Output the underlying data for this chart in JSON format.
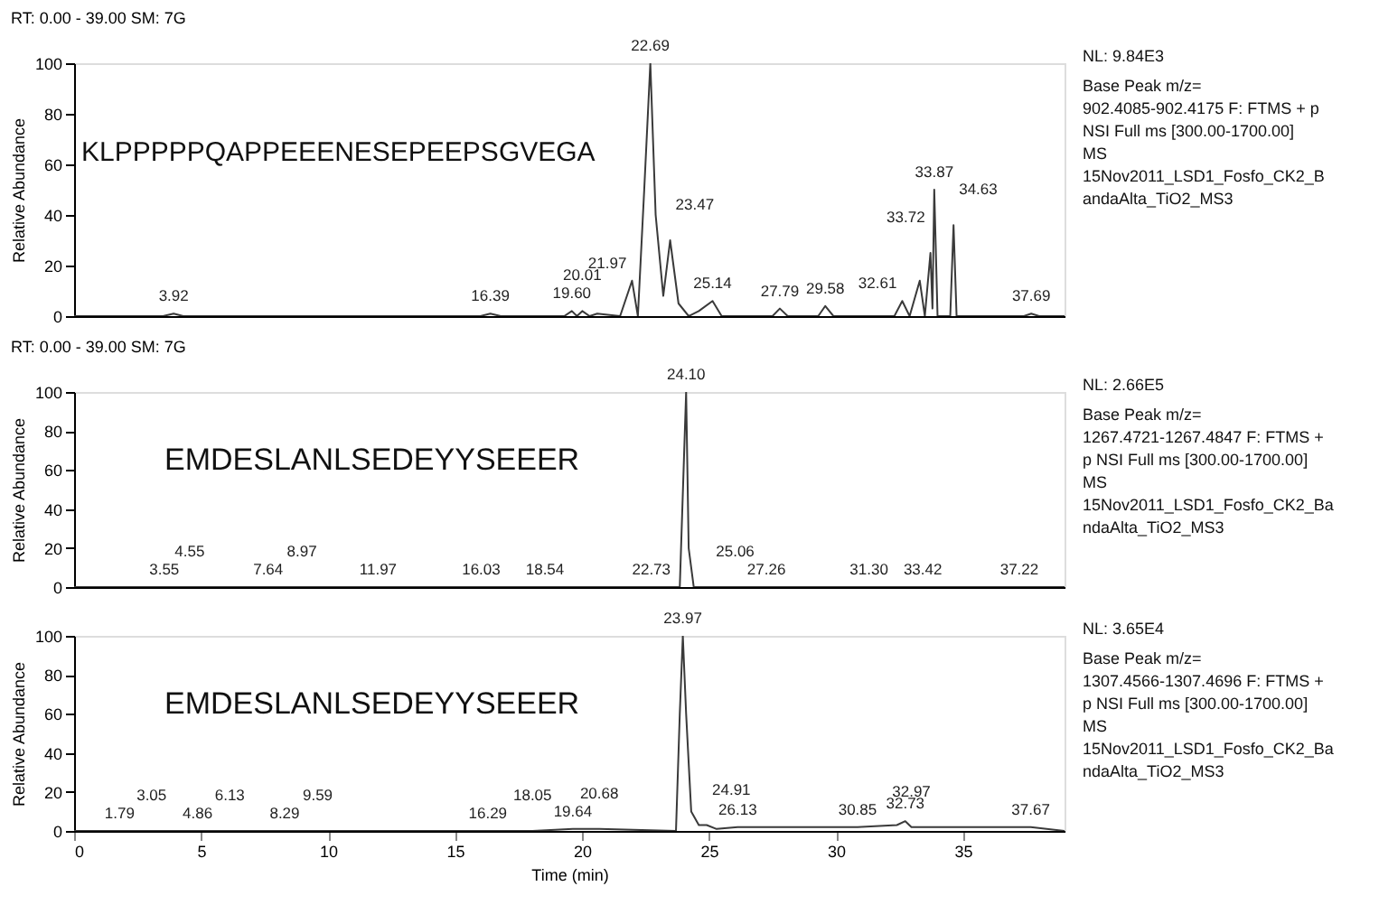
{
  "chart_data": [
    {
      "type": "line",
      "title": "RT: 0.00 - 39.00   SM: 7G",
      "ylabel": "Relative Abundance",
      "color": "#3a3a3a",
      "x": [
        0,
        3.5,
        3.92,
        4.3,
        16.0,
        16.39,
        16.8,
        19.3,
        19.6,
        19.8,
        20.01,
        20.3,
        20.6,
        21.5,
        21.97,
        22.2,
        22.45,
        22.69,
        22.9,
        23.2,
        23.47,
        23.8,
        24.2,
        24.6,
        25.14,
        25.5,
        27.5,
        27.79,
        28.1,
        29.3,
        29.58,
        29.9,
        32.3,
        32.61,
        32.9,
        33.3,
        33.5,
        33.72,
        33.8,
        33.87,
        34.0,
        34.5,
        34.63,
        34.75,
        37.4,
        37.69,
        38.0,
        39.0
      ],
      "values": [
        0,
        0,
        1,
        0,
        0,
        1,
        0,
        0,
        2,
        0,
        2,
        0,
        1,
        0,
        14,
        0,
        50,
        100,
        40,
        8,
        30,
        5,
        0,
        2,
        6,
        0,
        0,
        3,
        0,
        0,
        4,
        0,
        0,
        6,
        0,
        14,
        0,
        25,
        3,
        50,
        0,
        0,
        36,
        0,
        0,
        1,
        0,
        0
      ],
      "xlim": [
        0,
        39
      ],
      "xticks": [
        0,
        5,
        10,
        15,
        20,
        25,
        30,
        35
      ],
      "ylim": [
        0,
        100
      ],
      "yticks": [
        0,
        20,
        40,
        60,
        80,
        100
      ],
      "tick_labels": "y",
      "grid": false,
      "annotations": [
        "KLPPPPPQAPPEEENESEPEEPSGVEGA",
        "NL: 9.84E3",
        "Base Peak m/z=",
        "902.4085-902.4175 F: FTMS + p",
        "NSI Full ms [300.00-1700.00]",
        "MS",
        "15Nov2011_LSD1_Fosfo_CK2_B",
        "andaAlta_TiO2_MS3",
        {
          "text": "3.92",
          "x": 3.92,
          "y": 1
        },
        {
          "text": "16.39",
          "x": 16.39,
          "y": 1
        },
        {
          "text": "19.60",
          "x": 19.6,
          "y": 2
        },
        {
          "text": "20.01",
          "x": 20.01,
          "y": 2
        },
        {
          "text": "21.97",
          "x": 21.97,
          "y": 14
        },
        {
          "text": "22.69",
          "x": 22.69,
          "y": 100
        },
        {
          "text": "23.47",
          "x": 23.47,
          "y": 30
        },
        {
          "text": "25.14",
          "x": 25.14,
          "y": 6
        },
        {
          "text": "27.79",
          "x": 27.79,
          "y": 3
        },
        {
          "text": "29.58",
          "x": 29.58,
          "y": 4
        },
        {
          "text": "32.61",
          "x": 32.61,
          "y": 6
        },
        {
          "text": "33.72",
          "x": 33.72,
          "y": 25
        },
        {
          "text": "33.87",
          "x": 33.87,
          "y": 50
        },
        {
          "text": "34.63",
          "x": 34.63,
          "y": 36
        },
        {
          "text": "37.69",
          "x": 37.69,
          "y": 1
        }
      ]
    },
    {
      "type": "line",
      "title": "RT: 0.00 - 39.00   SM: 7G",
      "ylabel": "Relative Abundance",
      "color": "#3a3a3a",
      "x": [
        0,
        3.55,
        4.55,
        7.64,
        8.97,
        11.97,
        16.03,
        18.54,
        22.73,
        23.85,
        24.0,
        24.1,
        24.2,
        24.4,
        25.06,
        27.26,
        31.3,
        33.42,
        37.22,
        39.0
      ],
      "values": [
        0,
        0,
        0,
        0,
        0,
        0,
        0,
        0,
        0,
        0,
        60,
        100,
        20,
        0,
        0,
        0,
        0,
        0,
        0,
        0
      ],
      "xlim": [
        0,
        39
      ],
      "xticks": [
        0,
        5,
        10,
        15,
        20,
        25,
        30,
        35
      ],
      "ylim": [
        0,
        100
      ],
      "yticks": [
        0,
        20,
        40,
        60,
        80,
        100
      ],
      "tick_labels": "y",
      "grid": false,
      "annotations": [
        "EMDESLANLSEDEYYSEEER",
        "NL: 2.66E5",
        "Base Peak m/z=",
        "1267.4721-1267.4847 F: FTMS +",
        "p NSI Full ms [300.00-1700.00]",
        "MS",
        "15Nov2011_LSD1_Fosfo_CK2_Ba",
        "ndaAlta_TiO2_MS3",
        {
          "text": "3.55",
          "x": 3.55,
          "y": 0
        },
        {
          "text": "4.55",
          "x": 4.55,
          "y": 0
        },
        {
          "text": "7.64",
          "x": 7.64,
          "y": 0
        },
        {
          "text": "8.97",
          "x": 8.97,
          "y": 0
        },
        {
          "text": "11.97",
          "x": 11.97,
          "y": 0
        },
        {
          "text": "16.03",
          "x": 16.03,
          "y": 0
        },
        {
          "text": "18.54",
          "x": 18.54,
          "y": 0
        },
        {
          "text": "22.73",
          "x": 22.73,
          "y": 0
        },
        {
          "text": "24.10",
          "x": 24.1,
          "y": 100
        },
        {
          "text": "25.06",
          "x": 25.06,
          "y": 0
        },
        {
          "text": "27.26",
          "x": 27.26,
          "y": 0
        },
        {
          "text": "31.30",
          "x": 31.3,
          "y": 0
        },
        {
          "text": "33.42",
          "x": 33.42,
          "y": 0
        },
        {
          "text": "37.22",
          "x": 37.22,
          "y": 0
        }
      ]
    },
    {
      "type": "line",
      "ylabel": "Relative Abundance",
      "xlabel": "Time (min)",
      "color": "#3a3a3a",
      "x": [
        0,
        1.79,
        3.05,
        4.86,
        6.13,
        8.29,
        9.59,
        16.29,
        18.05,
        19.64,
        20.68,
        23.7,
        23.85,
        23.97,
        24.1,
        24.3,
        24.6,
        24.91,
        25.3,
        26.13,
        30.85,
        32.4,
        32.73,
        32.97,
        37.67,
        39.0
      ],
      "values": [
        0,
        0,
        0,
        0,
        0,
        0,
        0,
        0,
        0,
        1,
        1,
        0,
        60,
        100,
        60,
        10,
        3,
        3,
        1,
        2,
        2,
        3,
        5,
        2,
        2,
        0
      ],
      "xlim": [
        0,
        39
      ],
      "xticks": [
        0,
        5,
        10,
        15,
        20,
        25,
        30,
        35
      ],
      "ylim": [
        0,
        100
      ],
      "yticks": [
        0,
        20,
        40,
        60,
        80,
        100
      ],
      "grid": false,
      "annotations": [
        "EMDESLANLSEDEYYSEEER",
        "NL: 3.65E4",
        "Base Peak m/z=",
        "1307.4566-1307.4696 F: FTMS +",
        "p NSI Full ms [300.00-1700.00]",
        "MS",
        "15Nov2011_LSD1_Fosfo_CK2_Ba",
        "ndaAlta_TiO2_MS3",
        {
          "text": "1.79",
          "x": 1.79,
          "y": 0
        },
        {
          "text": "3.05",
          "x": 3.05,
          "y": 0
        },
        {
          "text": "4.86",
          "x": 4.86,
          "y": 0
        },
        {
          "text": "6.13",
          "x": 6.13,
          "y": 0
        },
        {
          "text": "8.29",
          "x": 8.29,
          "y": 0
        },
        {
          "text": "9.59",
          "x": 9.59,
          "y": 0
        },
        {
          "text": "16.29",
          "x": 16.29,
          "y": 0
        },
        {
          "text": "18.05",
          "x": 18.05,
          "y": 0
        },
        {
          "text": "19.64",
          "x": 19.64,
          "y": 1
        },
        {
          "text": "20.68",
          "x": 20.68,
          "y": 1
        },
        {
          "text": "23.97",
          "x": 23.97,
          "y": 100
        },
        {
          "text": "24.91",
          "x": 24.91,
          "y": 3
        },
        {
          "text": "26.13",
          "x": 26.13,
          "y": 2
        },
        {
          "text": "30.85",
          "x": 30.85,
          "y": 2
        },
        {
          "text": "32.73",
          "x": 32.73,
          "y": 5
        },
        {
          "text": "32.97",
          "x": 32.97,
          "y": 2
        },
        {
          "text": "37.67",
          "x": 37.67,
          "y": 2
        }
      ]
    }
  ]
}
